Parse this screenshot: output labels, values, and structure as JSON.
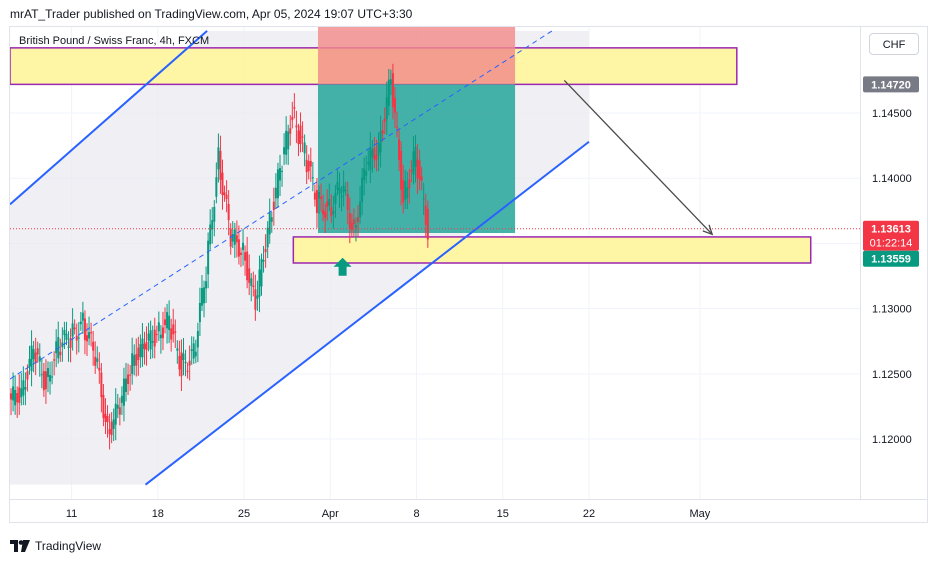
{
  "header": {
    "publish_line": "mrAT_Trader published on TradingView.com, Apr 05, 2024 19:07 UTC+3:30"
  },
  "legend": {
    "symbol": "British Pound / Swiss Franc, 4h, FXCM",
    "currency": "CHF"
  },
  "footer": {
    "brand": "TradingView",
    "logo_icon": "tradingview-logo-icon"
  },
  "colors": {
    "channel": "#2962ff",
    "up_candle": "#089981",
    "down_candle": "#f23645",
    "zone_fill": "#fff59d",
    "zone_border": "#9c27b0",
    "stop_fill": "#f28b8b",
    "target_fill": "#26a69a",
    "last_price_bg": "#f23645",
    "target_label_bg": "#787b86",
    "bid_label_bg": "#089981",
    "arrow": "#4a4a4a"
  },
  "chart_data": {
    "type": "candlestick",
    "title": "British Pound / Swiss Franc, 4h, FXCM",
    "ylim": [
      1.1154,
      1.1516
    ],
    "y_ticks": [
      "1.12000",
      "1.12500",
      "1.13000",
      "1.13500",
      "1.14000",
      "1.14500"
    ],
    "x_ticks": [
      {
        "label": "11",
        "date": "2024-03-11"
      },
      {
        "label": "18",
        "date": "2024-03-18"
      },
      {
        "label": "25",
        "date": "2024-03-25"
      },
      {
        "label": "Apr",
        "date": "2024-04-01"
      },
      {
        "label": "8",
        "date": "2024-04-08"
      },
      {
        "label": "15",
        "date": "2024-04-15"
      },
      {
        "label": "22",
        "date": "2024-04-22"
      },
      {
        "label": "May",
        "date": "2024-05-01"
      }
    ],
    "xlim": [
      "2024-03-06",
      "2024-05-14"
    ],
    "price_labels": {
      "target": "1.14720",
      "last": "1.13613",
      "countdown": "01:22:14",
      "bid": "1.13559"
    },
    "candles": [
      {
        "date": "2024-03-06",
        "close": 1.1237
      },
      {
        "date": "2024-03-07",
        "close": 1.1268
      },
      {
        "date": "2024-03-08",
        "close": 1.1242
      },
      {
        "date": "2024-03-09",
        "close": 1.1272
      },
      {
        "date": "2024-03-10",
        "close": 1.1278
      },
      {
        "date": "2024-03-11",
        "close": 1.1288
      },
      {
        "date": "2024-03-12",
        "close": 1.1265
      },
      {
        "date": "2024-03-13",
        "close": 1.1205
      },
      {
        "date": "2024-03-14",
        "close": 1.1225
      },
      {
        "date": "2024-03-15",
        "close": 1.1262
      },
      {
        "date": "2024-03-16",
        "close": 1.127
      },
      {
        "date": "2024-03-17",
        "close": 1.1282
      },
      {
        "date": "2024-03-18",
        "close": 1.129
      },
      {
        "date": "2024-03-19",
        "close": 1.1255
      },
      {
        "date": "2024-03-20",
        "close": 1.1265
      },
      {
        "date": "2024-03-21",
        "close": 1.133
      },
      {
        "date": "2024-03-22",
        "close": 1.1415
      },
      {
        "date": "2024-03-23",
        "close": 1.1355
      },
      {
        "date": "2024-03-24",
        "close": 1.1345
      },
      {
        "date": "2024-03-25",
        "close": 1.1302
      },
      {
        "date": "2024-03-26",
        "close": 1.1362
      },
      {
        "date": "2024-03-27",
        "close": 1.1405
      },
      {
        "date": "2024-03-28",
        "close": 1.145
      },
      {
        "date": "2024-03-29",
        "close": 1.142
      },
      {
        "date": "2024-03-30",
        "close": 1.1382
      },
      {
        "date": "2024-03-31",
        "close": 1.1375
      },
      {
        "date": "2024-04-01",
        "close": 1.1395
      },
      {
        "date": "2024-04-02",
        "close": 1.1358
      },
      {
        "date": "2024-04-03",
        "close": 1.141
      },
      {
        "date": "2024-04-04",
        "close": 1.1425
      },
      {
        "date": "2024-04-05",
        "close": 1.1475
      },
      {
        "date": "2024-04-06",
        "close": 1.1385
      },
      {
        "date": "2024-04-07",
        "close": 1.1418
      },
      {
        "date": "2024-04-08",
        "close": 1.1361
      }
    ],
    "annotations": {
      "channel_upper": [
        {
          "date": "2024-03-06",
          "price": 1.138
        },
        {
          "date": "2024-03-22",
          "price": 1.1513
        }
      ],
      "channel_lower": [
        {
          "date": "2024-03-17",
          "price": 1.1165
        },
        {
          "date": "2024-04-22",
          "price": 1.1428
        }
      ],
      "channel_mid": [
        {
          "date": "2024-03-06",
          "price": 1.1246
        },
        {
          "date": "2024-04-19",
          "price": 1.1513
        }
      ],
      "channel_area": [
        {
          "date": "2024-03-06",
          "price": 1.138
        },
        {
          "date": "2024-03-22",
          "price": 1.1513
        },
        {
          "date": "2024-04-22",
          "price": 1.1513
        },
        {
          "date": "2024-04-22",
          "price": 1.1428
        },
        {
          "date": "2024-03-17",
          "price": 1.1165
        },
        {
          "date": "2024-03-06",
          "price": 1.1165
        }
      ],
      "supply_zone": {
        "from": "2024-03-06",
        "to": "2024-05-04",
        "top": 1.15,
        "bottom": 1.1472
      },
      "demand_zone": {
        "from": "2024-03-29",
        "to": "2024-05-10",
        "top": 1.1355,
        "bottom": 1.1335
      },
      "position": {
        "from": "2024-03-31",
        "to": "2024-04-16",
        "entry": 1.1358,
        "stop": 1.1513,
        "target": 1.1472
      },
      "projection_arrow": [
        {
          "date": "2024-04-20",
          "price": 1.1475
        },
        {
          "date": "2024-05-02",
          "price": 1.1357
        }
      ],
      "buy_marker": {
        "date": "2024-04-02",
        "price": 1.1339
      }
    }
  }
}
